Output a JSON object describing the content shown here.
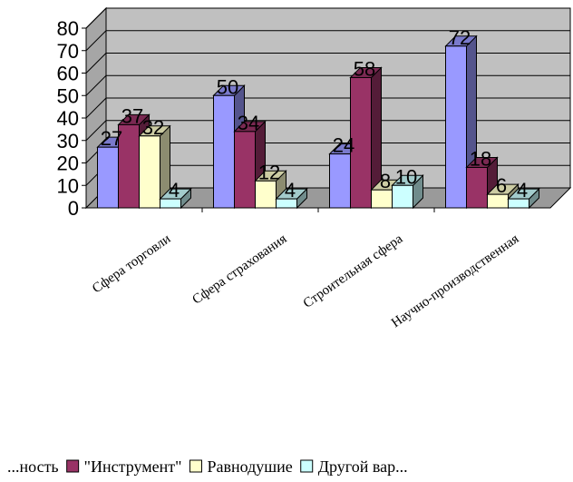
{
  "chart_data": {
    "type": "bar",
    "title": "",
    "xlabel": "",
    "ylabel": "",
    "ylim": [
      0,
      80
    ],
    "yticks": [
      0,
      10,
      20,
      30,
      40,
      50,
      60,
      70,
      80
    ],
    "grid": true,
    "legend_position": "bottom",
    "categories": [
      "Сфера торговли",
      "Сфера страхования",
      "Строительная сфера",
      "Научно-производственная"
    ],
    "series": [
      {
        "name": "...ность",
        "values": [
          27,
          50,
          24,
          72
        ],
        "color": "#9999ff"
      },
      {
        "name": "\"Инструмент\"",
        "values": [
          37,
          34,
          58,
          18
        ],
        "color": "#993366"
      },
      {
        "name": "Равнодушие",
        "values": [
          32,
          12,
          8,
          6
        ],
        "color": "#ffffcc"
      },
      {
        "name": "Другой вар...",
        "values": [
          4,
          4,
          10,
          4
        ],
        "color": "#ccffff"
      }
    ],
    "wall_color": "#c0c0c0"
  }
}
